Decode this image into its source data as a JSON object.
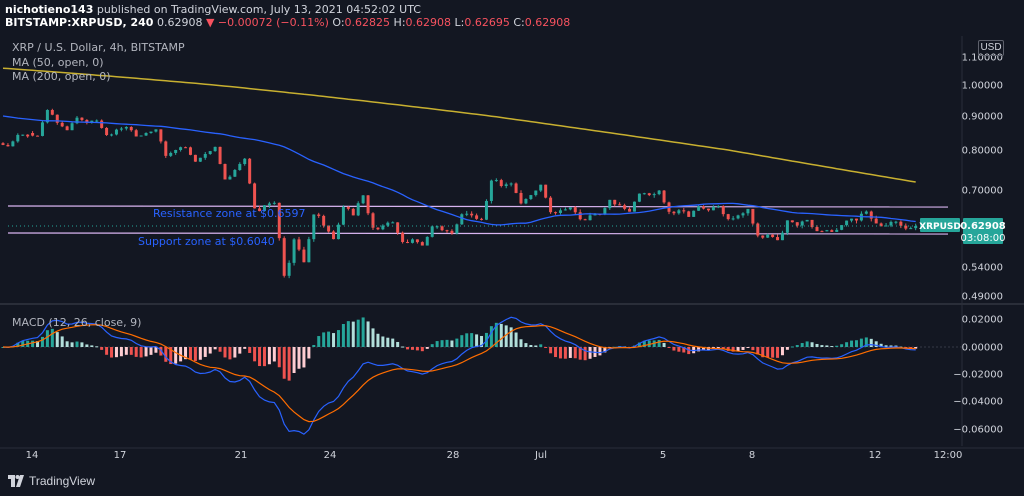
{
  "header": {
    "publisher": "nichotieno143",
    "published_text": " published on TradingView.com, July 13, 2021 04:52:02 UTC",
    "symbol": "BITSTAMP:XRPUSD, 240",
    "last": "0.62908",
    "change": "−0.00072 (−0.11%)",
    "o_label": "O:",
    "o_value": "0.62825",
    "h_label": "H:",
    "h_value": "0.62908",
    "l_label": "L:",
    "l_value": "0.62695",
    "c_label": "C:",
    "c_value": "0.62908"
  },
  "legend": {
    "title": "XRP / U.S. Dollar, 4h, BITSTAMP",
    "ma50": "MA (50, open, 0)",
    "ma200": "MA (200, open, 0)",
    "macd": "MACD (12, 26, close, 9)"
  },
  "currency_button": "USD",
  "price_tag": {
    "label": "XRPUSD",
    "price": "0.62908",
    "countdown": "03:08:00"
  },
  "annotations": {
    "resistance": "Resistance zone at $0.6597",
    "support": "Support zone at $0.6040"
  },
  "brand": "TradingView",
  "colors": {
    "background": "#131722",
    "up": "#26a69a",
    "down": "#ef5350",
    "ma50": "#2962ff",
    "ma200": "#c8b030",
    "zone_line": "#d8b4f0",
    "macd_line": "#2962ff",
    "signal_line": "#ff6d00"
  },
  "chart_data": [
    {
      "type": "candlestick",
      "title": "XRP / U.S. Dollar, 4h, BITSTAMP",
      "y_ticks": [
        "1.10000",
        "1.00000",
        "0.90000",
        "0.80000",
        "0.70000",
        "0.62908",
        "0.54000",
        "0.49000"
      ],
      "x_ticks": [
        "14",
        "17",
        "21",
        "24",
        "28",
        "Jul",
        "5",
        "8",
        "12",
        "12:00"
      ],
      "ohlc_daily_approx": [
        {
          "x": "Jun 13",
          "o": 0.82,
          "h": 0.85,
          "l": 0.81,
          "c": 0.84
        },
        {
          "x": "Jun 14",
          "o": 0.85,
          "h": 0.93,
          "l": 0.84,
          "c": 0.88
        },
        {
          "x": "Jun 15",
          "o": 0.88,
          "h": 0.9,
          "l": 0.86,
          "c": 0.88
        },
        {
          "x": "Jun 16",
          "o": 0.88,
          "h": 0.89,
          "l": 0.84,
          "c": 0.86
        },
        {
          "x": "Jun 17",
          "o": 0.86,
          "h": 0.87,
          "l": 0.84,
          "c": 0.85
        },
        {
          "x": "Jun 18",
          "o": 0.85,
          "h": 0.86,
          "l": 0.78,
          "c": 0.8
        },
        {
          "x": "Jun 19",
          "o": 0.8,
          "h": 0.81,
          "l": 0.77,
          "c": 0.79
        },
        {
          "x": "Jun 20",
          "o": 0.79,
          "h": 0.81,
          "l": 0.72,
          "c": 0.75
        },
        {
          "x": "Jun 21",
          "o": 0.75,
          "h": 0.78,
          "l": 0.65,
          "c": 0.67
        },
        {
          "x": "Jun 22",
          "o": 0.67,
          "h": 0.68,
          "l": 0.51,
          "c": 0.6
        },
        {
          "x": "Jun 23",
          "o": 0.6,
          "h": 0.66,
          "l": 0.55,
          "c": 0.63
        },
        {
          "x": "Jun 24",
          "o": 0.63,
          "h": 0.67,
          "l": 0.6,
          "c": 0.65
        },
        {
          "x": "Jun 25",
          "o": 0.65,
          "h": 0.69,
          "l": 0.62,
          "c": 0.63
        },
        {
          "x": "Jun 26",
          "o": 0.63,
          "h": 0.64,
          "l": 0.59,
          "c": 0.6
        },
        {
          "x": "Jun 27",
          "o": 0.6,
          "h": 0.63,
          "l": 0.59,
          "c": 0.62
        },
        {
          "x": "Jun 28",
          "o": 0.62,
          "h": 0.66,
          "l": 0.61,
          "c": 0.65
        },
        {
          "x": "Jun 29",
          "o": 0.65,
          "h": 0.73,
          "l": 0.64,
          "c": 0.71
        },
        {
          "x": "Jun 30",
          "o": 0.71,
          "h": 0.72,
          "l": 0.67,
          "c": 0.69
        },
        {
          "x": "Jul 1",
          "o": 0.69,
          "h": 0.71,
          "l": 0.65,
          "c": 0.66
        },
        {
          "x": "Jul 2",
          "o": 0.66,
          "h": 0.67,
          "l": 0.64,
          "c": 0.65
        },
        {
          "x": "Jul 3",
          "o": 0.65,
          "h": 0.68,
          "l": 0.65,
          "c": 0.67
        },
        {
          "x": "Jul 4",
          "o": 0.67,
          "h": 0.7,
          "l": 0.66,
          "c": 0.69
        },
        {
          "x": "Jul 5",
          "o": 0.69,
          "h": 0.7,
          "l": 0.65,
          "c": 0.66
        },
        {
          "x": "Jul 6",
          "o": 0.66,
          "h": 0.67,
          "l": 0.65,
          "c": 0.66
        },
        {
          "x": "Jul 7",
          "o": 0.66,
          "h": 0.67,
          "l": 0.64,
          "c": 0.65
        },
        {
          "x": "Jul 8",
          "o": 0.65,
          "h": 0.66,
          "l": 0.6,
          "c": 0.61
        },
        {
          "x": "Jul 9",
          "o": 0.61,
          "h": 0.64,
          "l": 0.6,
          "c": 0.63
        },
        {
          "x": "Jul 10",
          "o": 0.63,
          "h": 0.64,
          "l": 0.62,
          "c": 0.62
        },
        {
          "x": "Jul 11",
          "o": 0.62,
          "h": 0.64,
          "l": 0.62,
          "c": 0.64
        },
        {
          "x": "Jul 12",
          "o": 0.64,
          "h": 0.66,
          "l": 0.63,
          "c": 0.63
        },
        {
          "x": "Jul 13",
          "o": 0.63,
          "h": 0.64,
          "l": 0.62,
          "c": 0.629
        }
      ],
      "resistance_level": 0.6597,
      "support_level": 0.604
    },
    {
      "type": "macd",
      "title": "MACD (12, 26, close, 9)",
      "y_ticks": [
        "0.02000",
        "0.00000",
        "−0.02000",
        "−0.04000",
        "−0.06000"
      ],
      "x_ticks": [
        "14",
        "17",
        "21",
        "24",
        "28",
        "Jul",
        "5",
        "8",
        "12",
        "12:00"
      ]
    }
  ]
}
